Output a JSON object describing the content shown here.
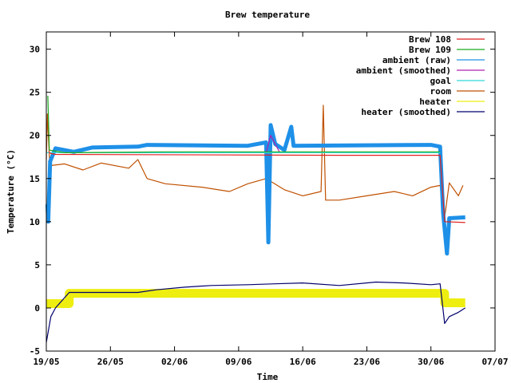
{
  "chart_data": {
    "type": "line",
    "title": "Brew temperature",
    "xlabel": "Time",
    "ylabel": "Temperature (°C)",
    "xlim": [
      "2014-05-19",
      "2014-07-07"
    ],
    "ylim": [
      -5,
      32
    ],
    "x_ticks": [
      {
        "date": "2014-05-19",
        "label": "19/05"
      },
      {
        "date": "2014-05-26",
        "label": "26/05"
      },
      {
        "date": "2014-06-02",
        "label": "02/06"
      },
      {
        "date": "2014-06-09",
        "label": "09/06"
      },
      {
        "date": "2014-06-16",
        "label": "16/06"
      },
      {
        "date": "2014-06-23",
        "label": "23/06"
      },
      {
        "date": "2014-06-30",
        "label": "30/06"
      },
      {
        "date": "2014-07-07",
        "label": "07/07"
      }
    ],
    "y_ticks": [
      -5,
      0,
      5,
      10,
      15,
      20,
      25,
      30
    ],
    "legend_position": "top-right",
    "grid": false,
    "series": [
      {
        "name": "Brew 108",
        "color": "#e0201e",
        "points": [
          [
            "2014-05-19T06:00",
            18.1
          ],
          [
            "2014-05-19T12:00",
            17.9
          ],
          [
            "2014-05-20",
            17.8
          ],
          [
            "2014-06-20",
            17.7
          ],
          [
            "2014-07-01",
            17.7
          ],
          [
            "2014-07-01T12:00",
            10.0
          ],
          [
            "2014-07-03T18:00",
            9.9
          ]
        ]
      },
      {
        "name": "Brew 109",
        "color": "#1faa1f",
        "points": [
          [
            "2014-05-19T04:00",
            24.6
          ],
          [
            "2014-05-19T08:00",
            18.3
          ],
          [
            "2014-05-21",
            18.0
          ],
          [
            "2014-06-01",
            18.1
          ],
          [
            "2014-06-20",
            18.1
          ],
          [
            "2014-07-01",
            18.1
          ]
        ]
      },
      {
        "name": "ambient (raw)",
        "color": "#1e90e8",
        "points": [
          [
            "2014-05-19T03:00",
            12.0
          ],
          [
            "2014-05-19T05:00",
            10.0
          ],
          [
            "2014-05-19T10:00",
            17.0
          ],
          [
            "2014-05-20",
            18.5
          ],
          [
            "2014-05-22",
            18.1
          ],
          [
            "2014-05-24",
            18.6
          ],
          [
            "2014-05-29",
            18.7
          ],
          [
            "2014-05-30",
            18.9
          ],
          [
            "2014-06-10",
            18.8
          ],
          [
            "2014-06-12",
            19.2
          ],
          [
            "2014-06-12T06:00",
            7.6
          ],
          [
            "2014-06-12T12:00",
            21.2
          ],
          [
            "2014-06-13",
            19.0
          ],
          [
            "2014-06-14",
            18.3
          ],
          [
            "2014-06-14T18:00",
            21.0
          ],
          [
            "2014-06-15",
            18.8
          ],
          [
            "2014-06-30",
            18.9
          ],
          [
            "2014-07-01",
            18.7
          ],
          [
            "2014-07-01T08:00",
            11.0
          ],
          [
            "2014-07-01T18:00",
            6.3
          ],
          [
            "2014-07-02",
            10.4
          ],
          [
            "2014-07-03T18:00",
            10.5
          ]
        ]
      },
      {
        "name": "ambient (smoothed)",
        "color": "#b020b0",
        "points": [
          [
            "2014-06-12",
            18.0
          ],
          [
            "2014-06-12T12:00",
            20.0
          ],
          [
            "2014-06-13",
            19.0
          ],
          [
            "2014-06-13T12:00",
            18.0
          ]
        ]
      },
      {
        "name": "goal",
        "color": "#30d8d8",
        "points": [
          [
            "2014-05-19",
            18.0
          ],
          [
            "2014-07-01",
            18.0
          ]
        ]
      },
      {
        "name": "room",
        "color": "#c05000",
        "points": [
          [
            "2014-05-19",
            17.2
          ],
          [
            "2014-05-19T03:00",
            22.5
          ],
          [
            "2014-05-19T09:00",
            16.5
          ],
          [
            "2014-05-21",
            16.7
          ],
          [
            "2014-05-23",
            16.0
          ],
          [
            "2014-05-25",
            16.8
          ],
          [
            "2014-05-28",
            16.2
          ],
          [
            "2014-05-29",
            17.2
          ],
          [
            "2014-05-30",
            15.0
          ],
          [
            "2014-06-01",
            14.4
          ],
          [
            "2014-06-05",
            14.0
          ],
          [
            "2014-06-08",
            13.5
          ],
          [
            "2014-06-10",
            14.4
          ],
          [
            "2014-06-12",
            15.0
          ],
          [
            "2014-06-14",
            13.7
          ],
          [
            "2014-06-16",
            13.0
          ],
          [
            "2014-06-18",
            13.5
          ],
          [
            "2014-06-18T06:00",
            23.5
          ],
          [
            "2014-06-18T12:00",
            12.5
          ],
          [
            "2014-06-20",
            12.5
          ],
          [
            "2014-06-23",
            13.0
          ],
          [
            "2014-06-26",
            13.5
          ],
          [
            "2014-06-28",
            13.0
          ],
          [
            "2014-06-30",
            14.0
          ],
          [
            "2014-07-01",
            14.2
          ],
          [
            "2014-07-01T12:00",
            10.5
          ],
          [
            "2014-07-02",
            14.5
          ],
          [
            "2014-07-03",
            13.0
          ],
          [
            "2014-07-03T12:00",
            14.2
          ]
        ]
      },
      {
        "name": "heater",
        "color": "#eeee10",
        "points": [
          [
            "2014-05-19",
            0.5
          ],
          [
            "2014-05-21T12:00",
            0.5
          ],
          [
            "2014-05-21T12:00",
            1.7
          ],
          [
            "2014-06-30",
            1.7
          ],
          [
            "2014-07-01T12:00",
            1.7
          ],
          [
            "2014-07-01T12:00",
            0.6
          ],
          [
            "2014-07-03T18:00",
            0.6
          ]
        ]
      },
      {
        "name": "heater (smoothed)",
        "color": "#00006e",
        "points": [
          [
            "2014-05-19",
            -4.0
          ],
          [
            "2014-05-19T12:00",
            -1.0
          ],
          [
            "2014-05-20",
            0.0
          ],
          [
            "2014-05-21T12:00",
            1.8
          ],
          [
            "2014-05-25",
            1.8
          ],
          [
            "2014-05-29",
            1.8
          ],
          [
            "2014-05-31",
            2.1
          ],
          [
            "2014-06-03",
            2.4
          ],
          [
            "2014-06-06",
            2.6
          ],
          [
            "2014-06-10",
            2.7
          ],
          [
            "2014-06-13",
            2.8
          ],
          [
            "2014-06-16",
            2.9
          ],
          [
            "2014-06-20",
            2.6
          ],
          [
            "2014-06-24",
            3.0
          ],
          [
            "2014-06-27",
            2.9
          ],
          [
            "2014-06-30",
            2.7
          ],
          [
            "2014-07-01",
            2.8
          ],
          [
            "2014-07-01T12:00",
            -1.8
          ],
          [
            "2014-07-02",
            -1.0
          ],
          [
            "2014-07-03",
            -0.5
          ],
          [
            "2014-07-03T18:00",
            0.0
          ]
        ]
      }
    ]
  }
}
